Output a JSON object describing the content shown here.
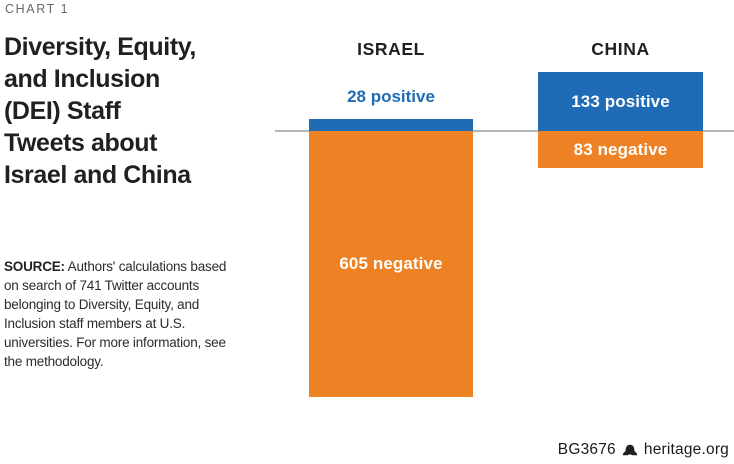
{
  "header": {
    "kicker": "CHART 1",
    "title_lines": [
      "Diversity, Equity,",
      "and Inclusion",
      "(DEI) Staff",
      "Tweets about",
      "Israel and China"
    ]
  },
  "source": {
    "label": "SOURCE:",
    "text": " Authors' calculations based on search of 741 Twitter accounts belonging to Diversity, Equity, and Inclusion staff members at U.S. universities. For more information, see the methodology."
  },
  "footer": {
    "report_id": "BG3676",
    "logo_icon": "heritage-bell-icon",
    "site": "heritage.org"
  },
  "colors": {
    "positive_blue": "#1f6bb5",
    "negative_orange": "#ee8123",
    "baseline_gray": "#b5b6b8",
    "title_black": "#231f20",
    "kicker_gray": "#66686b"
  },
  "chart_data": {
    "type": "bar",
    "orientation": "diverging-vertical",
    "title": "Diversity, Equity, and Inclusion (DEI) Staff Tweets about Israel and China",
    "categories": [
      "ISRAEL",
      "CHINA"
    ],
    "series": [
      {
        "name": "positive",
        "color": "#1f6bb5",
        "values": [
          28,
          133
        ]
      },
      {
        "name": "negative",
        "color": "#ee8123",
        "values": [
          605,
          83
        ]
      }
    ],
    "bar_labels": {
      "israel_positive": "28 positive",
      "israel_negative": "605 negative",
      "china_positive": "133 positive",
      "china_negative": "83 negative"
    },
    "units": "tweets",
    "baseline_value": 0,
    "axis_ticks": "none",
    "grid": false,
    "legend": "none",
    "baseline_color": "#b5b6b8"
  }
}
